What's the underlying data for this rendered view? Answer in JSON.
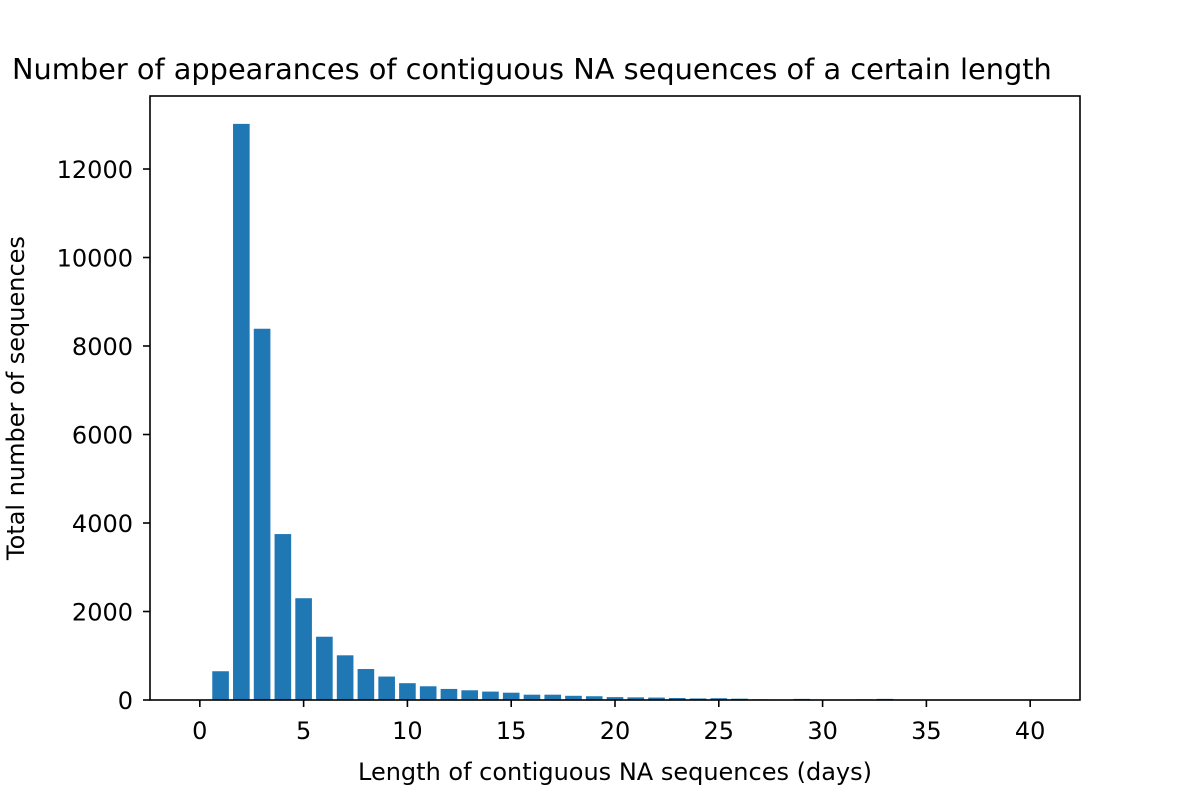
{
  "chart_data": {
    "type": "bar",
    "title": "Number of appearances of contiguous NA sequences of a certain length",
    "xlabel": "Length of contiguous NA sequences (days)",
    "ylabel": "Total number of sequences",
    "xlim": [
      -2.4,
      42.4
    ],
    "ylim": [
      0,
      13650
    ],
    "xticks": [
      0,
      5,
      10,
      15,
      20,
      25,
      30,
      35,
      40
    ],
    "yticks": [
      0,
      2000,
      4000,
      6000,
      8000,
      10000,
      12000
    ],
    "xtick_labels": [
      "0",
      "5",
      "10",
      "15",
      "20",
      "25",
      "30",
      "35",
      "40"
    ],
    "ytick_labels": [
      "0",
      "2000",
      "4000",
      "6000",
      "8000",
      "10000",
      "12000"
    ],
    "bar_width": 0.8,
    "bar_color": "#1f77b4",
    "grid": false,
    "x": [
      1,
      2,
      3,
      4,
      5,
      6,
      7,
      8,
      9,
      10,
      11,
      12,
      13,
      14,
      15,
      16,
      17,
      18,
      19,
      20,
      21,
      22,
      23,
      24,
      25,
      26,
      27,
      28,
      29,
      30,
      31,
      32,
      33,
      34,
      35,
      36,
      37,
      38,
      39,
      40
    ],
    "values": [
      650,
      13020,
      8390,
      3750,
      2300,
      1430,
      1010,
      700,
      530,
      380,
      310,
      250,
      220,
      190,
      165,
      120,
      120,
      95,
      85,
      65,
      60,
      55,
      45,
      35,
      40,
      30,
      15,
      10,
      25,
      10,
      10,
      15,
      25,
      10,
      10,
      5,
      5,
      5,
      5,
      5
    ]
  }
}
